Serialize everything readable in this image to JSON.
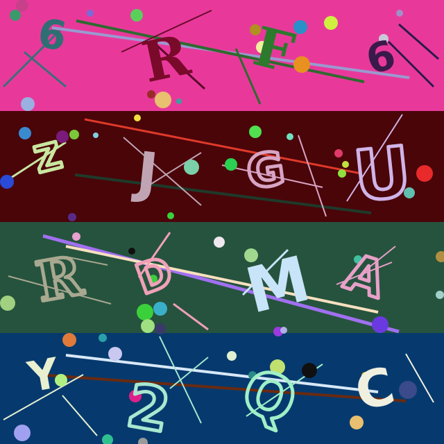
{
  "bands": [
    {
      "background": "#e8399b",
      "characters": [
        {
          "text": "6",
          "color": "#2f6f73",
          "style": "sans"
        },
        {
          "text": "R",
          "color": "#7a0a2a",
          "style": "serif"
        },
        {
          "text": "F",
          "color": "#2c7a2c",
          "style": "serif"
        },
        {
          "text": "6",
          "color": "#3a1a4a",
          "style": "sans"
        }
      ]
    },
    {
      "background": "#4a0509",
      "characters": [
        {
          "text": "Z",
          "color": "#c8e6a0",
          "style": "outline"
        },
        {
          "text": "J",
          "color": "#c0a4b4",
          "style": "sans"
        },
        {
          "text": "G",
          "color": "#d8a4c4",
          "style": "outline"
        },
        {
          "text": "U",
          "color": "#d0b4e8",
          "style": "outline"
        }
      ]
    },
    {
      "background": "#26533e",
      "characters": [
        {
          "text": "R",
          "color": "#a8a890",
          "style": "outline"
        },
        {
          "text": "D",
          "color": "#f0a0b8",
          "style": "outline"
        },
        {
          "text": "M",
          "color": "#c8e4f8",
          "style": "sans"
        },
        {
          "text": "A",
          "color": "#e8a0c8",
          "style": "outline"
        }
      ]
    },
    {
      "background": "#063a6e",
      "characters": [
        {
          "text": "Y",
          "color": "#e8f0d0",
          "style": "sans"
        },
        {
          "text": "2",
          "color": "#a8e8d0",
          "style": "outline"
        },
        {
          "text": "Q",
          "color": "#a0f0c8",
          "style": "outline"
        },
        {
          "text": "C",
          "color": "#f0f0e0",
          "style": "sans"
        }
      ]
    }
  ]
}
